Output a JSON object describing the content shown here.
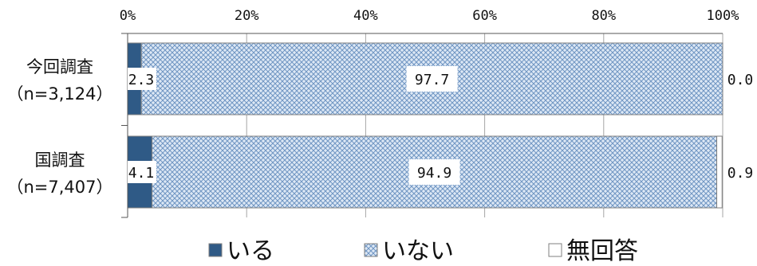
{
  "chart_data": {
    "type": "bar",
    "orientation": "horizontal",
    "stacked": "percent",
    "xlim": [
      0,
      100
    ],
    "x_ticks": [
      "0%",
      "20%",
      "40%",
      "60%",
      "80%",
      "100%"
    ],
    "categories": [
      {
        "line1": "今回調査",
        "line2": "（n=3,124）"
      },
      {
        "line1": "国調査",
        "line2": "（n=7,407）"
      }
    ],
    "series": [
      {
        "name": "いる",
        "values": [
          2.3,
          4.1
        ],
        "labels": [
          "2.3",
          "4.1"
        ],
        "fill": "solid",
        "color": "#2f5a86"
      },
      {
        "name": "いない",
        "values": [
          97.7,
          94.9
        ],
        "labels": [
          "97.7",
          "94.9"
        ],
        "fill": "crosshatch",
        "color": "#8fb0d6"
      },
      {
        "name": "無回答",
        "values": [
          0.0,
          0.9
        ],
        "labels": [
          "0.0",
          "0.9"
        ],
        "fill": "white",
        "color": "#ffffff"
      }
    ],
    "grid": true,
    "legend_position": "bottom"
  }
}
